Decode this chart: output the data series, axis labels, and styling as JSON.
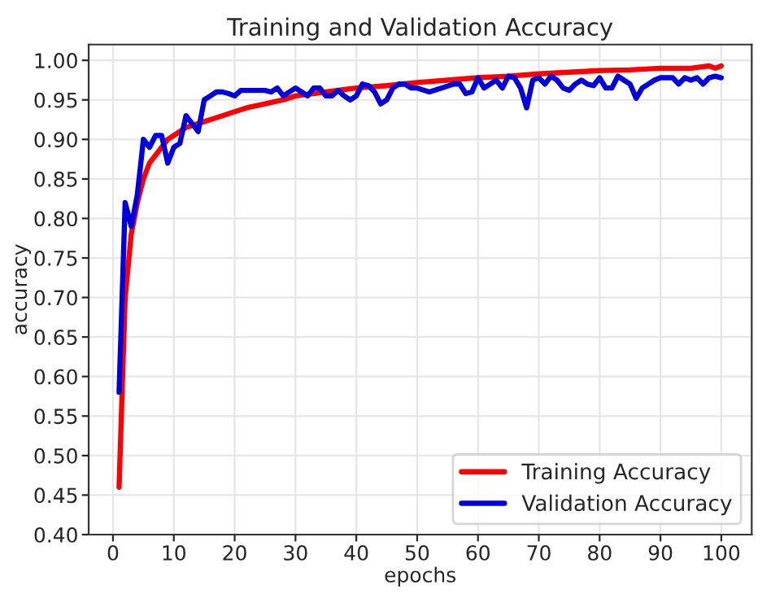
{
  "chart_data": {
    "type": "line",
    "title": "Training and Validation Accuracy",
    "xlabel": "epochs",
    "ylabel": "accuracy",
    "xlim": [
      -4,
      105
    ],
    "xticks": [
      0,
      10,
      20,
      30,
      40,
      50,
      60,
      70,
      80,
      90,
      100
    ],
    "ylim": [
      0.4,
      1.02
    ],
    "yticks": [
      {
        "value": 0.4,
        "label": "0.40"
      },
      {
        "value": 0.45,
        "label": "0.45"
      },
      {
        "value": 0.5,
        "label": "0.50"
      },
      {
        "value": 0.55,
        "label": "0.55"
      },
      {
        "value": 0.6,
        "label": "0.60"
      },
      {
        "value": 0.65,
        "label": "0.65"
      },
      {
        "value": 0.7,
        "label": "0.70"
      },
      {
        "value": 0.75,
        "label": "0.75"
      },
      {
        "value": 0.8,
        "label": "0.80"
      },
      {
        "value": 0.85,
        "label": "0.85"
      },
      {
        "value": 0.9,
        "label": "0.90"
      },
      {
        "value": 0.95,
        "label": "0.95"
      },
      {
        "value": 1.0,
        "label": "1.00"
      }
    ],
    "grid": true,
    "legend": "bottom right",
    "line_style": "solid",
    "series": [
      {
        "name": "Training Accuracy",
        "color": "#ff0000",
        "x": [
          1,
          2,
          3,
          4,
          5,
          6,
          7,
          8,
          9,
          10,
          12,
          14,
          16,
          18,
          20,
          22,
          25,
          28,
          30,
          35,
          40,
          45,
          50,
          55,
          60,
          65,
          70,
          75,
          80,
          85,
          90,
          95,
          98,
          99,
          100
        ],
        "values": [
          0.46,
          0.7,
          0.78,
          0.82,
          0.85,
          0.87,
          0.88,
          0.89,
          0.9,
          0.905,
          0.915,
          0.92,
          0.925,
          0.93,
          0.935,
          0.94,
          0.945,
          0.95,
          0.955,
          0.96,
          0.965,
          0.968,
          0.972,
          0.975,
          0.978,
          0.98,
          0.983,
          0.985,
          0.987,
          0.988,
          0.99,
          0.99,
          0.993,
          0.99,
          0.993
        ]
      },
      {
        "name": "Validation Accuracy",
        "color": "#0000dd",
        "x": [
          1,
          2,
          3,
          4,
          5,
          6,
          7,
          8,
          9,
          10,
          11,
          12,
          13,
          14,
          15,
          16,
          17,
          18,
          19,
          20,
          21,
          23,
          25,
          26,
          27,
          28,
          30,
          31,
          32,
          33,
          34,
          35,
          36,
          37,
          38,
          39,
          40,
          41,
          42,
          43,
          44,
          45,
          46,
          47,
          48,
          49,
          50,
          52,
          54,
          56,
          57,
          58,
          59,
          60,
          61,
          62,
          63,
          64,
          65,
          66,
          67,
          68,
          69,
          70,
          71,
          72,
          73,
          74,
          75,
          76,
          77,
          78,
          79,
          80,
          81,
          82,
          83,
          84,
          85,
          86,
          87,
          88,
          89,
          90,
          91,
          92,
          93,
          94,
          95,
          96,
          97,
          98,
          99,
          100
        ],
        "values": [
          0.58,
          0.82,
          0.79,
          0.83,
          0.9,
          0.89,
          0.905,
          0.905,
          0.87,
          0.89,
          0.895,
          0.93,
          0.92,
          0.91,
          0.95,
          0.955,
          0.96,
          0.96,
          0.958,
          0.955,
          0.962,
          0.962,
          0.962,
          0.96,
          0.965,
          0.955,
          0.965,
          0.96,
          0.955,
          0.965,
          0.965,
          0.955,
          0.955,
          0.962,
          0.955,
          0.95,
          0.955,
          0.97,
          0.968,
          0.96,
          0.945,
          0.95,
          0.965,
          0.97,
          0.97,
          0.965,
          0.965,
          0.96,
          0.965,
          0.97,
          0.97,
          0.958,
          0.96,
          0.978,
          0.965,
          0.97,
          0.975,
          0.965,
          0.98,
          0.978,
          0.965,
          0.94,
          0.975,
          0.978,
          0.97,
          0.98,
          0.975,
          0.965,
          0.962,
          0.97,
          0.975,
          0.97,
          0.968,
          0.978,
          0.965,
          0.965,
          0.98,
          0.975,
          0.97,
          0.952,
          0.965,
          0.97,
          0.975,
          0.978,
          0.978,
          0.978,
          0.97,
          0.978,
          0.975,
          0.978,
          0.97,
          0.978,
          0.98,
          0.978
        ]
      }
    ]
  }
}
